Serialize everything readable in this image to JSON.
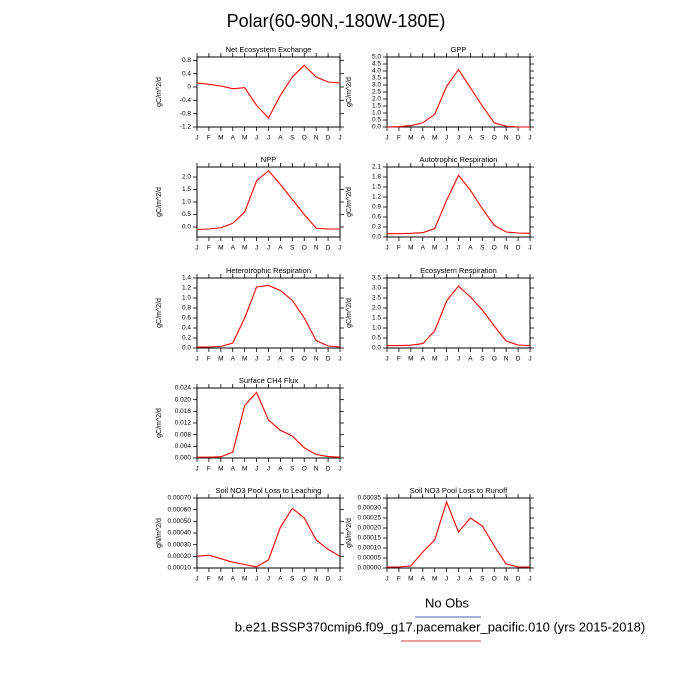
{
  "title": "Polar(60-90N,-180W-180E)",
  "chart_data": [
    {
      "type": "line",
      "title": "Net Ecosystem Exchange",
      "ylabel": "gC/m^2/d",
      "color": "#ff0000",
      "categories": [
        "J",
        "F",
        "M",
        "A",
        "M",
        "J",
        "J",
        "A",
        "S",
        "O",
        "N",
        "D",
        "J"
      ],
      "values": [
        0.12,
        0.08,
        0.03,
        -0.05,
        -0.02,
        -0.55,
        -0.93,
        -0.25,
        0.3,
        0.65,
        0.3,
        0.15,
        0.12
      ],
      "ylim": [
        -1.2,
        0.9
      ],
      "yticks": [
        -1.2,
        -0.8,
        -0.4,
        0,
        0.4,
        0.8
      ]
    },
    {
      "type": "line",
      "title": "GPP",
      "ylabel": "gC/m^2/d",
      "color": "#ff0000",
      "categories": [
        "J",
        "F",
        "M",
        "A",
        "M",
        "J",
        "J",
        "A",
        "S",
        "O",
        "N",
        "D",
        "J"
      ],
      "values": [
        0,
        0.02,
        0.1,
        0.3,
        0.9,
        2.9,
        4.1,
        2.8,
        1.5,
        0.3,
        0.05,
        0,
        0
      ],
      "ylim": [
        0,
        5
      ],
      "yticks": [
        {
          "value": 0,
          "label": "0.0"
        },
        0.5,
        {
          "value": 1,
          "label": "1.0"
        },
        1.5,
        {
          "value": 2,
          "label": "2.0"
        },
        2.5,
        {
          "value": 3,
          "label": "3.0"
        },
        3.5,
        {
          "value": 4,
          "label": "4.0"
        },
        4.5,
        {
          "value": 5,
          "label": "5.0"
        }
      ]
    },
    {
      "type": "line",
      "title": "NPP",
      "ylabel": "gC/m^2/d",
      "color": "#ff0000",
      "categories": [
        "J",
        "F",
        "M",
        "A",
        "M",
        "J",
        "J",
        "A",
        "S",
        "O",
        "N",
        "D",
        "J"
      ],
      "values": [
        -0.1,
        -0.08,
        -0.03,
        0.15,
        0.6,
        1.85,
        2.25,
        1.7,
        1.1,
        0.5,
        -0.05,
        -0.08,
        -0.08
      ],
      "ylim": [
        -0.4,
        2.4
      ],
      "yticks": [
        {
          "value": 0,
          "label": "0.0"
        },
        0.5,
        {
          "value": 1,
          "label": "1.0"
        },
        1.5,
        {
          "value": 2,
          "label": "2.0"
        }
      ]
    },
    {
      "type": "line",
      "title": "Autotrophic Respiration",
      "ylabel": "gC/m^2/d",
      "color": "#ff0000",
      "categories": [
        "J",
        "F",
        "M",
        "A",
        "M",
        "J",
        "J",
        "A",
        "S",
        "O",
        "N",
        "D",
        "J"
      ],
      "values": [
        0.1,
        0.1,
        0.11,
        0.13,
        0.25,
        1.1,
        1.85,
        1.4,
        0.85,
        0.35,
        0.15,
        0.12,
        0.11
      ],
      "ylim": [
        0,
        2.1
      ],
      "yticks": [
        {
          "value": 0,
          "label": "0.0"
        },
        0.3,
        0.6,
        0.9,
        1.2,
        1.5,
        1.8,
        2.1
      ]
    },
    {
      "type": "line",
      "title": "Heterotrophic Respiration",
      "ylabel": "gC/m^2/d",
      "color": "#ff0000",
      "categories": [
        "J",
        "F",
        "M",
        "A",
        "M",
        "J",
        "J",
        "A",
        "S",
        "O",
        "N",
        "D",
        "J"
      ],
      "values": [
        0.02,
        0.02,
        0.03,
        0.1,
        0.6,
        1.22,
        1.25,
        1.15,
        0.95,
        0.6,
        0.15,
        0.04,
        0.02
      ],
      "ylim": [
        0,
        1.4
      ],
      "yticks": [
        {
          "value": 0,
          "label": "0.0"
        },
        0.2,
        0.4,
        0.6,
        0.8,
        {
          "value": 1,
          "label": "1.0"
        },
        1.2,
        1.4
      ]
    },
    {
      "type": "line",
      "title": "Ecosystem Respiration",
      "ylabel": "gC/m^2/d",
      "color": "#ff0000",
      "categories": [
        "J",
        "F",
        "M",
        "A",
        "M",
        "J",
        "J",
        "A",
        "S",
        "O",
        "N",
        "D",
        "J"
      ],
      "values": [
        0.12,
        0.12,
        0.14,
        0.22,
        0.85,
        2.35,
        3.1,
        2.55,
        1.9,
        1.1,
        0.35,
        0.15,
        0.12
      ],
      "ylim": [
        0,
        3.5
      ],
      "yticks": [
        {
          "value": 0,
          "label": "0.0"
        },
        0.5,
        {
          "value": 1,
          "label": "1.0"
        },
        1.5,
        {
          "value": 2,
          "label": "2.0"
        },
        2.5,
        {
          "value": 3,
          "label": "3.0"
        },
        3.5
      ]
    },
    {
      "type": "line",
      "title": "Surface CH4 Flux",
      "ylabel": "gC/m^2/d",
      "color": "#ff0000",
      "categories": [
        "J",
        "F",
        "M",
        "A",
        "M",
        "J",
        "J",
        "A",
        "S",
        "O",
        "N",
        "D",
        "J"
      ],
      "values": [
        0.0003,
        0.0003,
        0.0004,
        0.002,
        0.018,
        0.0225,
        0.013,
        0.0095,
        0.0075,
        0.0035,
        0.0012,
        0.0005,
        0.0003
      ],
      "ylim": [
        0,
        0.024
      ],
      "yticks": [
        {
          "value": 0,
          "label": "0.000"
        },
        0.004,
        0.008,
        0.012,
        0.016,
        {
          "value": 0.02,
          "label": "0.020"
        },
        0.024
      ]
    },
    {
      "type": "line",
      "title": "Soil NO3 Pool Loss to Leaching",
      "ylabel": "gN/m^2/d",
      "color": "#ff0000",
      "categories": [
        "J",
        "F",
        "M",
        "A",
        "M",
        "J",
        "J",
        "A",
        "S",
        "O",
        "N",
        "D",
        "J"
      ],
      "values": [
        0.0002,
        0.00021,
        0.00018,
        0.00015,
        0.00013,
        0.00011,
        0.00017,
        0.00045,
        0.00061,
        0.00053,
        0.00034,
        0.00026,
        0.0002
      ],
      "ylim": [
        0.0001,
        0.0007
      ],
      "yticks": [
        {
          "value": 0.0001,
          "label": "0.00010"
        },
        {
          "value": 0.0002,
          "label": "0.00020"
        },
        {
          "value": 0.0003,
          "label": "0.00030"
        },
        {
          "value": 0.0004,
          "label": "0.00040"
        },
        {
          "value": 0.0005,
          "label": "0.00050"
        },
        {
          "value": 0.0006,
          "label": "0.00060"
        },
        {
          "value": 0.0007,
          "label": "0.00070"
        }
      ]
    },
    {
      "type": "line",
      "title": "Soil NO3 Pool Loss to Runoff",
      "ylabel": "gN/m^2/d",
      "color": "#ff0000",
      "categories": [
        "J",
        "F",
        "M",
        "A",
        "M",
        "J",
        "J",
        "A",
        "S",
        "O",
        "N",
        "D",
        "J"
      ],
      "values": [
        5e-06,
        5e-06,
        1e-05,
        8e-05,
        0.00014,
        0.00033,
        0.00018,
        0.00025,
        0.00021,
        0.00011,
        2e-05,
        5e-06,
        5e-06
      ],
      "ylim": [
        0,
        0.00035
      ],
      "yticks": [
        {
          "value": 0,
          "label": "0.00000"
        },
        {
          "value": 5e-05,
          "label": "0.00005"
        },
        {
          "value": 0.0001,
          "label": "0.00010"
        },
        {
          "value": 0.00015,
          "label": "0.00015"
        },
        {
          "value": 0.0002,
          "label": "0.00020"
        },
        {
          "value": 0.00025,
          "label": "0.00025"
        },
        {
          "value": 0.0003,
          "label": "0.00030"
        },
        {
          "value": 0.00035,
          "label": "0.00035"
        }
      ]
    }
  ],
  "legend": {
    "obs": "No Obs",
    "case": "b.e21.BSSP370cmip6.f09_g17.pacemaker_pacific.010 (yrs 2015-2018)"
  }
}
